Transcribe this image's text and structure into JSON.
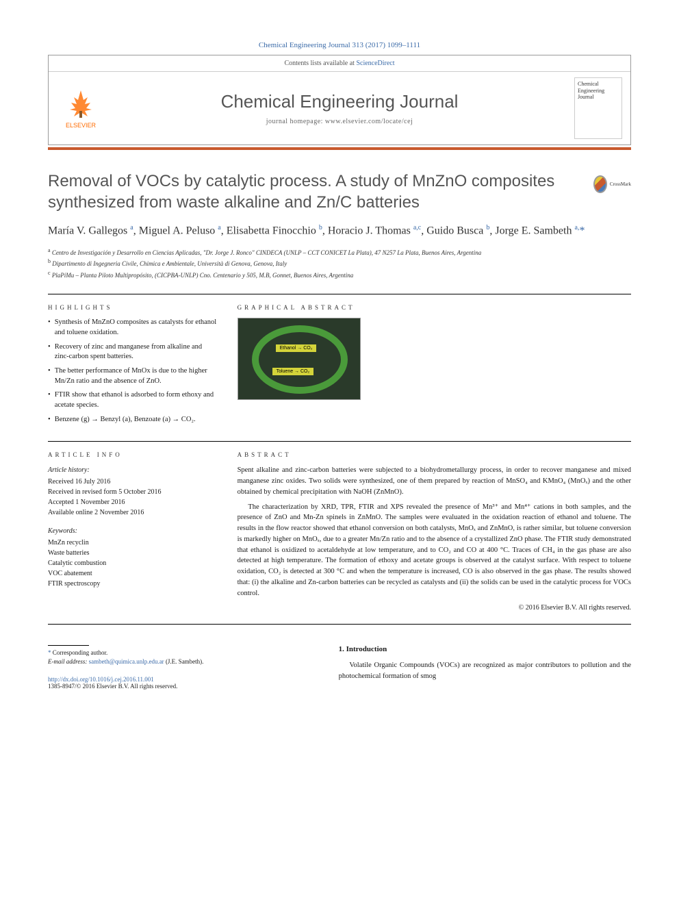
{
  "citation": "Chemical Engineering Journal 313 (2017) 1099–1111",
  "header": {
    "contents_line_prefix": "Contents lists available at ",
    "contents_link": "ScienceDirect",
    "journal_name": "Chemical Engineering Journal",
    "homepage_prefix": "journal homepage: ",
    "homepage_url": "www.elsevier.com/locate/cej",
    "publisher": "ELSEVIER",
    "cover_text_1": "Chemical",
    "cover_text_2": "Engineering",
    "cover_text_3": "Journal"
  },
  "colors": {
    "accent_bar": "#c85a2e",
    "link": "#3a6aa8",
    "elsevier_orange": "#ff6b00",
    "title_gray": "#555555",
    "ga_green": "#4a9a3a",
    "ga_yellow": "#d4d43a"
  },
  "article": {
    "title": "Removal of VOCs by catalytic process. A study of MnZnO composites synthesized from waste alkaline and Zn/C batteries",
    "crossmark_label": "CrossMark",
    "authors_html": "María V. Gallegos <sup>a</sup>, Miguel A. Peluso <sup>a</sup>, Elisabetta Finocchio <sup>b</sup>, Horacio J. Thomas <sup>a,c</sup>, Guido Busca <sup>b</sup>, Jorge E. Sambeth <sup>a,</sup><span class='author-star'>*</span>",
    "affiliations": [
      {
        "sup": "a",
        "text": "Centro de Investigación y Desarrollo en Ciencias Aplicadas, \"Dr. Jorge J. Ronco\" CINDECA (UNLP – CCT CONICET La Plata), 47 N257 La Plata, Buenos Aires, Argentina"
      },
      {
        "sup": "b",
        "text": "Dipartimento di Ingegneria Civile, Chimica e Ambientale, Università di Genova, Genova, Italy"
      },
      {
        "sup": "c",
        "text": "PlaPiMu – Planta Piloto Multipropósito, (CICPBA-UNLP) Cno. Centenario y 505, M.B, Gonnet, Buenos Aires, Argentina"
      }
    ]
  },
  "highlights": {
    "label": "HIGHLIGHTS",
    "items": [
      "Synthesis of MnZnO composites as catalysts for ethanol and toluene oxidation.",
      "Recovery of zinc and manganese from alkaline and zinc-carbon spent batteries.",
      "The better performance of MnOx is due to the higher Mn/Zn ratio and the absence of ZnO.",
      "FTIR show that ethanol is adsorbed to form ethoxy and acetate species.",
      "Benzene (g) → Benzyl (a), Benzoate (a) → CO₂."
    ]
  },
  "graphical_abstract": {
    "label": "GRAPHICAL ABSTRACT",
    "label_1": "Ethanol → CO₂",
    "label_2": "Toluene → CO₂"
  },
  "article_info": {
    "label": "ARTICLE INFO",
    "history_heading": "Article history:",
    "history": [
      "Received 16 July 2016",
      "Received in revised form 5 October 2016",
      "Accepted 1 November 2016",
      "Available online 2 November 2016"
    ],
    "keywords_heading": "Keywords:",
    "keywords": [
      "MnZn recyclin",
      "Waste batteries",
      "Catalytic combustion",
      "VOC abatement",
      "FTIR spectroscopy"
    ]
  },
  "abstract": {
    "label": "ABSTRACT",
    "paragraphs": [
      "Spent alkaline and zinc-carbon batteries were subjected to a biohydrometallurgy process, in order to recover manganese and mixed manganese zinc oxides. Two solids were synthesized, one of them prepared by reaction of MnSO₄ and KMnO₄ (MnOₓ) and the other obtained by chemical precipitation with NaOH (ZnMnO).",
      "The characterization by XRD, TPR, FTIR and XPS revealed the presence of Mn³⁺ and Mn⁴⁺ cations in both samples, and the presence of ZnO and Mn-Zn spinels in ZnMnO. The samples were evaluated in the oxidation reaction of ethanol and toluene. The results in the flow reactor showed that ethanol conversion on both catalysts, MnOₓ and ZnMnO, is rather similar, but toluene conversion is markedly higher on MnOₓ, due to a greater Mn/Zn ratio and to the absence of a crystallized ZnO phase. The FTIR study demonstrated that ethanol is oxidized to acetaldehyde at low temperature, and to CO₂ and CO at 400 °C. Traces of CH₄ in the gas phase are also detected at high temperature. The formation of ethoxy and acetate groups is observed at the catalyst surface. With respect to toluene oxidation, CO₂ is detected at 300 °C and when the temperature is increased, CO is also observed in the gas phase. The results showed that: (i) the alkaline and Zn-carbon batteries can be recycled as catalysts and (ii) the solids can be used in the catalytic process for VOCs control."
    ],
    "copyright": "© 2016 Elsevier B.V. All rights reserved."
  },
  "footnotes": {
    "corresponding": "Corresponding author.",
    "email_label": "E-mail address:",
    "email": "sambeth@quimica.unlp.edu.ar",
    "email_suffix": "(J.E. Sambeth)."
  },
  "doi": {
    "url": "http://dx.doi.org/10.1016/j.cej.2016.11.001",
    "issn_line": "1385-8947/© 2016 Elsevier B.V. All rights reserved."
  },
  "introduction": {
    "heading": "1. Introduction",
    "text": "Volatile Organic Compounds (VOCs) are recognized as major contributors to pollution and the photochemical formation of smog"
  }
}
